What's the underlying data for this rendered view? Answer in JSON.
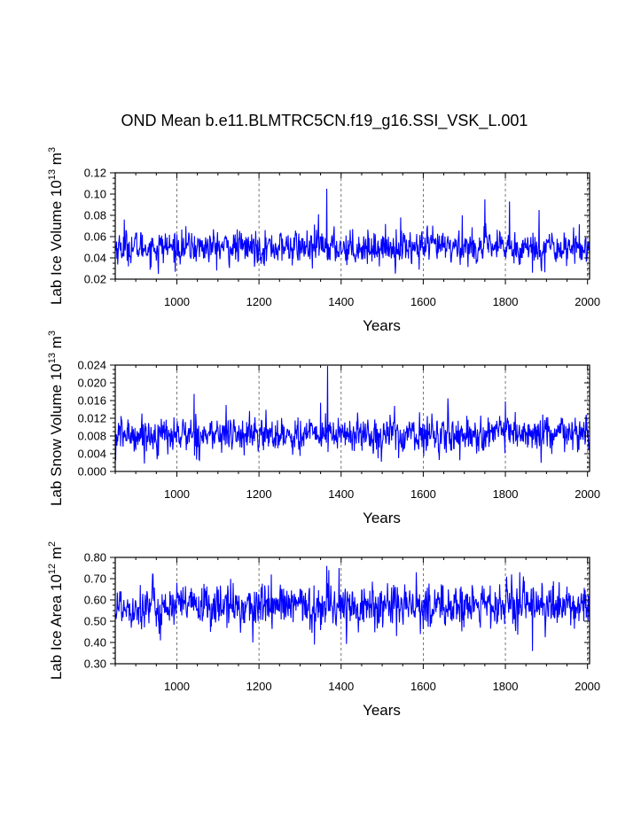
{
  "title": "OND Mean b.e11.BLMTRC5CN.f19_g16.SSI_VSK_L.001",
  "line_color": "#0000ff",
  "chart_data": [
    {
      "type": "line",
      "title": "OND Mean b.e11.BLMTRC5CN.f19_g16.SSI_VSK_L.001",
      "xlabel": "Years",
      "ylabel": "Lab Ice Volume 10",
      "ylabel_exp": "13",
      "ylabel_unit": " m",
      "ylabel_unit_exp": "3",
      "xlim": [
        850,
        2005
      ],
      "ylim": [
        0.02,
        0.12
      ],
      "x_ticks": [
        1000,
        1200,
        1400,
        1600,
        1800,
        2000
      ],
      "x_tick_labels": [
        "1000",
        "1200",
        "1400",
        "1600",
        "1800",
        "2000"
      ],
      "y_ticks": [
        0.02,
        0.04,
        0.06,
        0.08,
        0.1,
        0.12
      ],
      "y_tick_labels": [
        "0.02",
        "0.04",
        "0.06",
        "0.08",
        "0.10",
        "0.12"
      ],
      "grid_x": true,
      "series": [
        {
          "mean": 0.05,
          "spread": 0.0075,
          "x_start": 850,
          "x_end": 2005,
          "peaks": [
            [
              1365,
              0.105
            ],
            [
              1750,
              0.095
            ],
            [
              1810,
              0.093
            ],
            [
              1882,
              0.085
            ],
            [
              872,
              0.076
            ],
            [
              1345,
              0.081
            ],
            [
              1545,
              0.078
            ],
            [
              1695,
              0.08
            ]
          ],
          "lows": [
            [
              955,
              0.025
            ],
            [
              1866,
              0.026
            ],
            [
              1590,
              0.029
            ],
            [
              1330,
              0.03
            ]
          ]
        }
      ]
    },
    {
      "type": "line",
      "xlabel": "Years",
      "ylabel": "Lab Snow Volume 10",
      "ylabel_exp": "13",
      "ylabel_unit": " m",
      "ylabel_unit_exp": "3",
      "xlim": [
        850,
        2005
      ],
      "ylim": [
        0.0,
        0.024
      ],
      "x_ticks": [
        1000,
        1200,
        1400,
        1600,
        1800,
        2000
      ],
      "x_tick_labels": [
        "1000",
        "1200",
        "1400",
        "1600",
        "1800",
        "2000"
      ],
      "y_ticks": [
        0.0,
        0.004,
        0.008,
        0.012,
        0.016,
        0.02,
        0.024
      ],
      "y_tick_labels": [
        "0.000",
        "0.004",
        "0.008",
        "0.012",
        "0.016",
        "0.020",
        "0.024"
      ],
      "grid_x": true,
      "series": [
        {
          "mean": 0.0083,
          "spread": 0.0019,
          "x_start": 850,
          "x_end": 2005,
          "peaks": [
            [
              1367,
              0.0238
            ],
            [
              1042,
              0.0175
            ],
            [
              1660,
              0.0165
            ],
            [
              1350,
              0.0155
            ],
            [
              1800,
              0.0158
            ],
            [
              1120,
              0.015
            ],
            [
              1530,
              0.0148
            ]
          ],
          "lows": [
            [
              851,
              0.0025
            ],
            [
              955,
              0.0035
            ],
            [
              1540,
              0.003
            ],
            [
              1300,
              0.0035
            ]
          ]
        }
      ]
    },
    {
      "type": "line",
      "xlabel": "Years",
      "ylabel": "Lab Ice Area 10",
      "ylabel_exp": "12",
      "ylabel_unit": " m",
      "ylabel_unit_exp": "2",
      "xlim": [
        850,
        2005
      ],
      "ylim": [
        0.3,
        0.8
      ],
      "x_ticks": [
        1000,
        1200,
        1400,
        1600,
        1800,
        2000
      ],
      "x_tick_labels": [
        "1000",
        "1200",
        "1400",
        "1600",
        "1800",
        "2000"
      ],
      "y_ticks": [
        0.3,
        0.4,
        0.5,
        0.6,
        0.7,
        0.8
      ],
      "y_tick_labels": [
        "0.30",
        "0.40",
        "0.50",
        "0.60",
        "0.70",
        "0.80"
      ],
      "grid_x": true,
      "series": [
        {
          "mean": 0.57,
          "spread": 0.05,
          "x_start": 850,
          "x_end": 2005,
          "peaks": [
            [
              1365,
              0.76
            ],
            [
              1370,
              0.74
            ],
            [
              1835,
              0.73
            ],
            [
              1815,
              0.72
            ],
            [
              1230,
              0.72
            ],
            [
              1395,
              0.75
            ]
          ],
          "lows": [
            [
              1866,
              0.36
            ],
            [
              1335,
              0.39
            ],
            [
              1185,
              0.4
            ],
            [
              960,
              0.41
            ],
            [
              1535,
              0.43
            ]
          ]
        }
      ]
    }
  ]
}
